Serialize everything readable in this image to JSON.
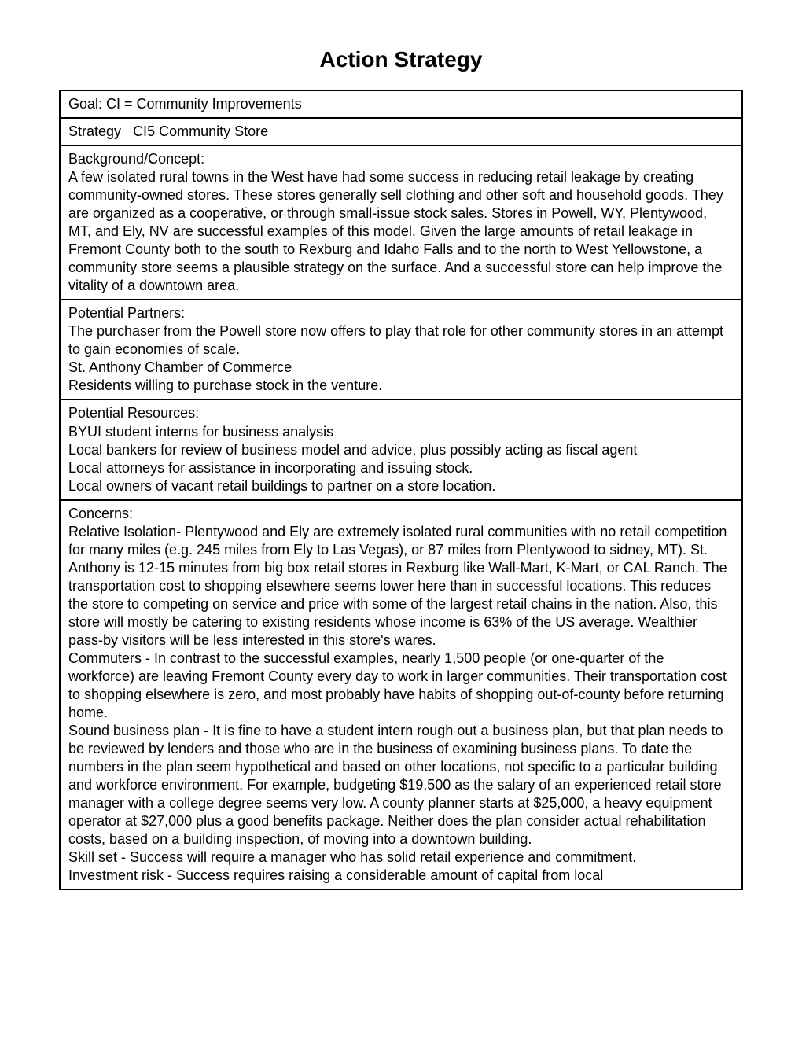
{
  "title": "Action Strategy",
  "goal": {
    "label": "Goal: ",
    "value": "CI = Community Improvements"
  },
  "strategy": {
    "label": "Strategy",
    "spacer": "   ",
    "value": "CI5 Community Store"
  },
  "background": {
    "heading": "Background/Concept:",
    "body": "A few isolated rural towns in the West have had some success in reducing retail leakage by creating community-owned stores.  These stores generally sell clothing and other soft and household goods.  They are organized as a cooperative, or through small-issue stock sales.  Stores in Powell, WY, Plentywood, MT, and Ely, NV are successful examples of this model.  Given the large amounts of retail leakage in Fremont County both to the south to Rexburg and Idaho Falls and to the north to West Yellowstone, a community store seems a plausible strategy on the surface.  And a successful store can help improve the vitality of a downtown area."
  },
  "partners": {
    "heading": "Potential Partners:",
    "lines": [
      "The purchaser from the Powell store now offers to play that role for other community stores in an attempt to gain economies of scale.",
      "St. Anthony Chamber of Commerce",
      "Residents willing to purchase stock in the venture."
    ]
  },
  "resources": {
    "heading": "Potential Resources:",
    "lines": [
      "BYUI student interns for business analysis",
      "Local bankers for review of business model and advice, plus possibly acting as fiscal agent",
      "Local attorneys for assistance in incorporating and issuing stock.",
      "Local owners of vacant retail buildings to partner on a store location."
    ]
  },
  "concerns": {
    "heading": "Concerns:",
    "paras": [
      "Relative Isolation- Plentywood and Ely are extremely isolated rural communities with no retail competition for many miles (e.g. 245 miles from Ely to Las Vegas), or 87 miles from Plentywood to sidney, MT).  St. Anthony is 12-15 minutes from big box retail stores in Rexburg like Wall-Mart, K-Mart, or CAL Ranch.  The transportation cost to shopping elsewhere seems lower here than in successful locations.  This reduces the store to competing on service and price with some of the largest retail chains in the nation.  Also, this store will mostly be catering to existing residents whose income is 63% of the US average.  Wealthier pass-by visitors will be less interested in this store's wares.",
      "Commuters - In contrast to the successful examples, nearly 1,500 people (or one-quarter of the workforce) are leaving Fremont County every day to work in larger communities.  Their transportation cost to shopping elsewhere is zero, and most probably have habits of shopping out-of-county before returning home.",
      "Sound business plan - It is fine to have a student intern rough out a business plan, but that plan needs to be reviewed by lenders and those who are in the business of examining business plans.  To date the numbers in the plan seem hypothetical and based on other locations, not specific to a particular building and workforce environment.  For example, budgeting $19,500 as the salary of an experienced retail store manager with a college degree seems very low.  A county planner starts at $25,000, a heavy equipment operator at $27,000 plus a good benefits package.  Neither does the plan consider actual rehabilitation costs, based on a building inspection, of moving into a downtown building.",
      "Skill set - Success will require a manager who has solid retail experience and commitment.",
      "Investment risk - Success requires raising a considerable amount of capital from local"
    ]
  }
}
